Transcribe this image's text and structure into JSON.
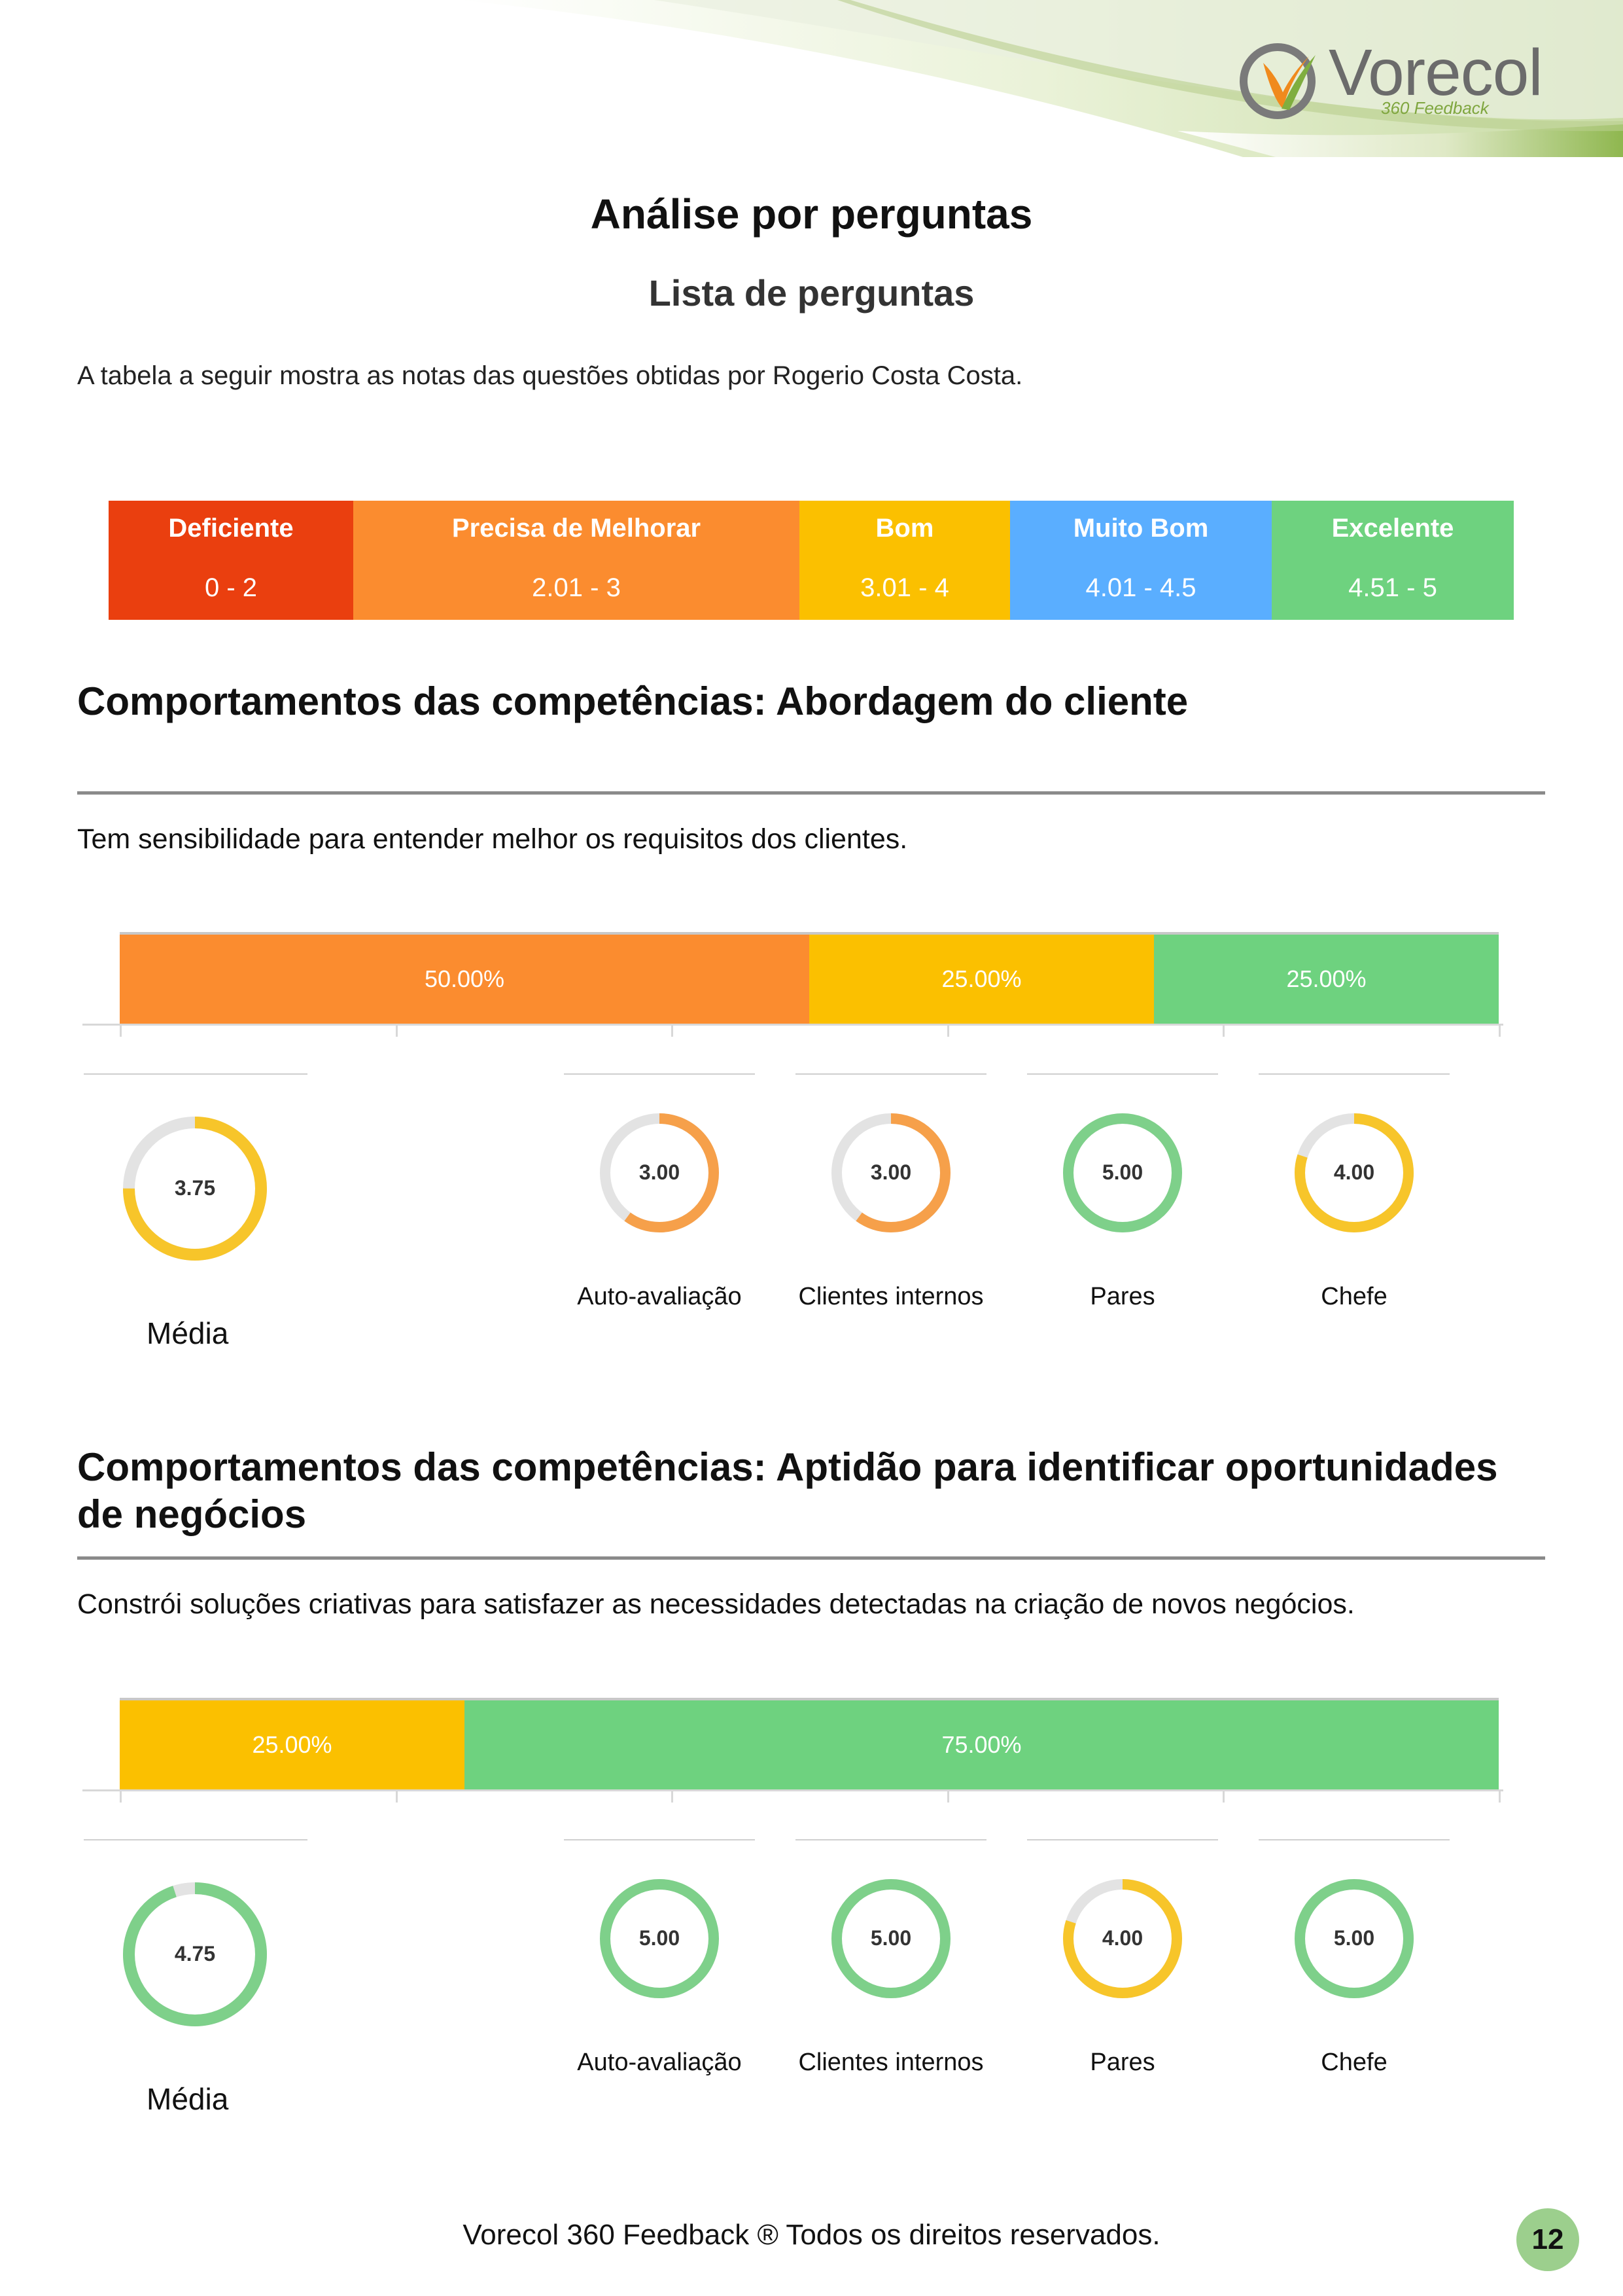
{
  "header": {
    "logo_name": "Vorecol",
    "logo_sub": "360 Feedback",
    "colors": {
      "accent_green": "#7fae3f",
      "logo_gray": "#6b6b6b",
      "logo_orange": "#f08a1d"
    }
  },
  "title": "Análise por perguntas",
  "subtitle": "Lista de perguntas",
  "intro": "A tabela a seguir mostra as notas das questões obtidas por Rogerio Costa Costa.",
  "legend": [
    {
      "label": "Deficiente",
      "range": "0  -  2",
      "color": "#ea3f0f"
    },
    {
      "label": "Precisa de Melhorar",
      "range": "2.01  -  3",
      "color": "#fb8c2f"
    },
    {
      "label": "Bom",
      "range": "3.01  -  4",
      "color": "#fbc000"
    },
    {
      "label": "Muito Bom",
      "range": "4.01  -  4.5",
      "color": "#5aaeff"
    },
    {
      "label": "Excelente",
      "range": "4.51  -  5",
      "color": "#6ed27f"
    }
  ],
  "sections": [
    {
      "title": "Comportamentos das competências: Abordagem do cliente",
      "question": "Tem sensibilidade para entender melhor os requisitos dos clientes.",
      "distribution": [
        {
          "label": "50.00%",
          "value": 50.0,
          "color": "#fb8c2f"
        },
        {
          "label": "25.00%",
          "value": 25.0,
          "color": "#fbc000"
        },
        {
          "label": "25.00%",
          "value": 25.0,
          "color": "#6ed27f"
        }
      ],
      "average": {
        "value": "3.75",
        "score": 3.75,
        "label": "Média",
        "color": "#f7c52a"
      },
      "groups": [
        {
          "name": "Auto-avaliação",
          "value": "3.00",
          "score": 3.0,
          "color": "#f6a04a"
        },
        {
          "name": "Clientes internos",
          "value": "3.00",
          "score": 3.0,
          "color": "#f6a04a"
        },
        {
          "name": "Pares",
          "value": "5.00",
          "score": 5.0,
          "color": "#7ed08a"
        },
        {
          "name": "Chefe",
          "value": "4.00",
          "score": 4.0,
          "color": "#f7c52a"
        }
      ]
    },
    {
      "title": "Comportamentos das competências: Aptidão para identificar oportunidades de negócios",
      "question": "Constrói soluções criativas para satisfazer as necessidades detectadas na criação de novos negócios.",
      "distribution": [
        {
          "label": "25.00%",
          "value": 25.0,
          "color": "#fbc000"
        },
        {
          "label": "75.00%",
          "value": 75.0,
          "color": "#6ed27f"
        }
      ],
      "average": {
        "value": "4.75",
        "score": 4.75,
        "label": "Média",
        "color": "#7ed08a"
      },
      "groups": [
        {
          "name": "Auto-avaliação",
          "value": "5.00",
          "score": 5.0,
          "color": "#7ed08a"
        },
        {
          "name": "Clientes internos",
          "value": "5.00",
          "score": 5.0,
          "color": "#7ed08a"
        },
        {
          "name": "Pares",
          "value": "4.00",
          "score": 4.0,
          "color": "#f7c52a"
        },
        {
          "name": "Chefe",
          "value": "5.00",
          "score": 5.0,
          "color": "#7ed08a"
        }
      ]
    }
  ],
  "footer": "Vorecol 360 Feedback ® Todos os direitos reservados.",
  "page_number": "12"
}
